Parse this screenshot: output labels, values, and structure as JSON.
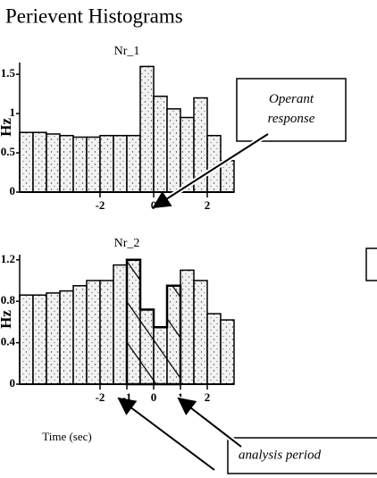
{
  "title": "Perievent Histograms",
  "chart_data": [
    {
      "type": "histogram",
      "title": "Nr_1",
      "y_label": "Hz",
      "color": "#e6e6e6",
      "bins": [
        -5,
        -4.5,
        -4,
        -3.5,
        -3,
        -2.5,
        -2,
        -1.5,
        -1,
        -0.5,
        0,
        0.5,
        1,
        1.5,
        2,
        2.5,
        3
      ],
      "values": [
        0.76,
        0.76,
        0.74,
        0.72,
        0.7,
        0.7,
        0.72,
        0.72,
        0.72,
        1.6,
        1.22,
        1.06,
        0.95,
        1.2,
        0.72,
        0.4
      ],
      "xlim": [
        -5,
        3
      ],
      "xticks": [
        -2,
        0,
        2
      ],
      "ylim": [
        0,
        1.65
      ],
      "yticks": [
        0,
        0.5,
        1,
        1.5
      ],
      "annotation": "Operant response"
    },
    {
      "type": "histogram",
      "title": "Nr_2",
      "y_label": "Hz",
      "x_label": "Time (sec)",
      "color": "#e6e6e6",
      "bins": [
        -5,
        -4.5,
        -4,
        -3.5,
        -3,
        -2.5,
        -2,
        -1.5,
        -1,
        -0.5,
        0,
        0.5,
        1,
        1.5,
        2,
        2.5,
        3
      ],
      "values": [
        0.86,
        0.86,
        0.88,
        0.9,
        0.95,
        1.0,
        1.0,
        1.15,
        1.2,
        0.72,
        0.55,
        0.95,
        1.1,
        1.0,
        0.68,
        0.62
      ],
      "xlim": [
        -5,
        3
      ],
      "xticks": [
        -2,
        -1,
        0,
        1,
        2
      ],
      "ylim": [
        0,
        1.25
      ],
      "yticks": [
        0,
        0.4,
        0.8,
        1.2
      ],
      "highlight": [
        -1,
        1
      ],
      "annotation": "analysis period"
    }
  ]
}
